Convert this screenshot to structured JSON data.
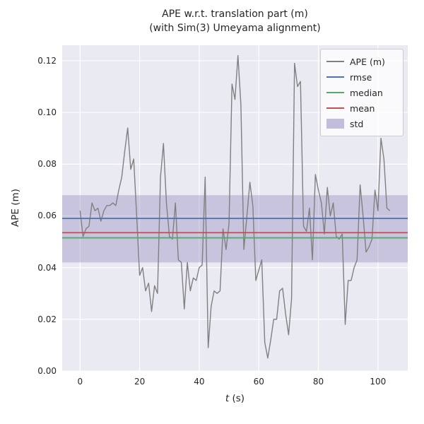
{
  "title": {
    "line1": "APE w.r.t. translation part (m)",
    "line2": "(with Sim(3) Umeyama alignment)"
  },
  "axes": {
    "ylabel": "APE (m)",
    "xlabel_var": "t",
    "xlabel_rest": " (s)"
  },
  "legend": {
    "position": "upper right",
    "items": [
      {
        "label": "APE (m)",
        "type": "line",
        "color_key": "ape"
      },
      {
        "label": "rmse",
        "type": "line",
        "color_key": "rmse"
      },
      {
        "label": "median",
        "type": "line",
        "color_key": "median"
      },
      {
        "label": "mean",
        "type": "line",
        "color_key": "mean"
      },
      {
        "label": "std",
        "type": "patch",
        "color_key": "std_fill"
      }
    ]
  },
  "chart_data": {
    "type": "line",
    "title": "APE w.r.t. translation part (m) (with Sim(3) Umeyama alignment)",
    "xlabel": "t (s)",
    "ylabel": "APE (m)",
    "xlim": [
      -6,
      110
    ],
    "ylim": [
      0,
      0.126
    ],
    "xticks": [
      0,
      20,
      40,
      60,
      80,
      100
    ],
    "xtick_labels": [
      "0",
      "20",
      "40",
      "60",
      "80",
      "100"
    ],
    "yticks": [
      0,
      0.02,
      0.04,
      0.06,
      0.08,
      0.1,
      0.12
    ],
    "ytick_labels": [
      "0.00",
      "0.02",
      "0.04",
      "0.06",
      "0.08",
      "0.10",
      "0.12"
    ],
    "grid": true,
    "legend_position": "upper right",
    "series": [
      {
        "name": "APE (m)",
        "x_start": 0,
        "x_step": 1,
        "values": [
          0.062,
          0.052,
          0.055,
          0.056,
          0.065,
          0.062,
          0.063,
          0.058,
          0.062,
          0.064,
          0.064,
          0.065,
          0.064,
          0.07,
          0.075,
          0.085,
          0.094,
          0.078,
          0.082,
          0.06,
          0.037,
          0.04,
          0.031,
          0.034,
          0.023,
          0.033,
          0.03,
          0.075,
          0.088,
          0.065,
          0.052,
          0.051,
          0.065,
          0.043,
          0.042,
          0.024,
          0.042,
          0.031,
          0.036,
          0.035,
          0.04,
          0.041,
          0.075,
          0.009,
          0.025,
          0.031,
          0.03,
          0.031,
          0.055,
          0.047,
          0.057,
          0.111,
          0.105,
          0.122,
          0.103,
          0.047,
          0.06,
          0.073,
          0.064,
          0.035,
          0.039,
          0.043,
          0.011,
          0.005,
          0.012,
          0.02,
          0.02,
          0.031,
          0.032,
          0.022,
          0.014,
          0.028,
          0.119,
          0.11,
          0.112,
          0.056,
          0.054,
          0.063,
          0.043,
          0.076,
          0.07,
          0.065,
          0.053,
          0.071,
          0.06,
          0.065,
          0.052,
          0.051,
          0.053,
          0.018,
          0.035,
          0.035,
          0.04,
          0.043,
          0.072,
          0.06,
          0.046,
          0.048,
          0.051,
          0.07,
          0.062,
          0.09,
          0.082,
          0.063,
          0.062
        ]
      }
    ],
    "stats": {
      "rmse": 0.059,
      "mean": 0.0535,
      "median": 0.0515,
      "std_band": [
        0.042,
        0.068
      ]
    },
    "colors": {
      "ape": "#808080",
      "rmse": "#4c72b0",
      "median": "#55a868",
      "mean": "#c44e52",
      "std_fill": "rgba(129,114,178,0.45)",
      "band_fill": "rgba(129,114,178,0.32)",
      "axes_bg": "#eaeaf2",
      "grid": "#ffffff"
    }
  }
}
